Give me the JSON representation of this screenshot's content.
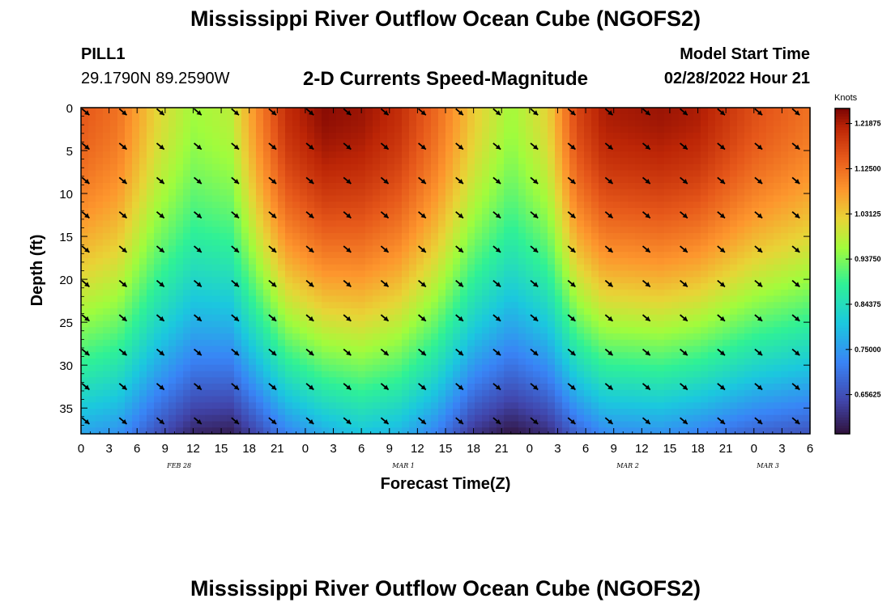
{
  "header": {
    "title": "Mississippi River Outflow Ocean Cube (NGOFS2)",
    "station": "PILL1",
    "coordinates": "29.1790N  89.2590W",
    "subtitle": "2-D Currents Speed-Magnitude",
    "model_start_label": "Model Start Time",
    "model_start_value": "02/28/2022 Hour 21"
  },
  "footer": {
    "title": "Mississippi River Outflow Ocean Cube (NGOFS2)"
  },
  "chart_data": {
    "type": "heatmap",
    "xlabel": "Forecast Time(Z)",
    "ylabel": "Depth (ft)",
    "x_tick_labels": [
      "0",
      "3",
      "6",
      "9",
      "12",
      "15",
      "18",
      "21",
      "0",
      "3",
      "6",
      "9",
      "12",
      "15",
      "18",
      "21",
      "0",
      "3",
      "6",
      "9",
      "12",
      "15",
      "18",
      "21",
      "0",
      "3",
      "6"
    ],
    "date_labels": [
      "FEB 28",
      "MAR 1",
      "MAR 2",
      "MAR 3"
    ],
    "date_label_hours": [
      10.5,
      34.5,
      58.5,
      73.5
    ],
    "y_ticks": [
      0,
      5,
      10,
      15,
      20,
      25,
      30,
      35
    ],
    "ylim": [
      0,
      38
    ],
    "xlim_hours": [
      0,
      78
    ],
    "colorbar": {
      "unit": "Knots",
      "tick_labels": [
        "1.21875",
        "1.12500",
        "1.03125",
        "0.93750",
        "0.84375",
        "0.75000",
        "0.65625"
      ],
      "ticks": [
        1.21875,
        1.125,
        1.03125,
        0.9375,
        0.84375,
        0.75,
        0.65625
      ],
      "range": [
        0.575,
        1.25
      ]
    },
    "speed_profiles": [
      {
        "hour": 0,
        "surface": 1.15,
        "bottom": 0.76
      },
      {
        "hour": 4,
        "surface": 1.12,
        "bottom": 0.74
      },
      {
        "hour": 8,
        "surface": 1.02,
        "bottom": 0.66
      },
      {
        "hour": 12,
        "surface": 0.96,
        "bottom": 0.6
      },
      {
        "hour": 16,
        "surface": 0.98,
        "bottom": 0.59
      },
      {
        "hour": 19,
        "surface": 1.1,
        "bottom": 0.65
      },
      {
        "hour": 22,
        "surface": 1.2,
        "bottom": 0.72
      },
      {
        "hour": 26,
        "surface": 1.24,
        "bottom": 0.77
      },
      {
        "hour": 30,
        "surface": 1.23,
        "bottom": 0.8
      },
      {
        "hour": 34,
        "surface": 1.2,
        "bottom": 0.78
      },
      {
        "hour": 38,
        "surface": 1.13,
        "bottom": 0.72
      },
      {
        "hour": 42,
        "surface": 1.03,
        "bottom": 0.62
      },
      {
        "hour": 46,
        "surface": 0.96,
        "bottom": 0.58
      },
      {
        "hour": 50,
        "surface": 1.02,
        "bottom": 0.61
      },
      {
        "hour": 53,
        "surface": 1.17,
        "bottom": 0.68
      },
      {
        "hour": 56,
        "surface": 1.22,
        "bottom": 0.73
      },
      {
        "hour": 62,
        "surface": 1.23,
        "bottom": 0.74
      },
      {
        "hour": 66,
        "surface": 1.22,
        "bottom": 0.72
      },
      {
        "hour": 72,
        "surface": 1.16,
        "bottom": 0.68
      },
      {
        "hour": 78,
        "surface": 1.12,
        "bottom": 0.66
      }
    ],
    "vector_hours": [
      0,
      4,
      8,
      12,
      16,
      20,
      24,
      28,
      32,
      36,
      40,
      44,
      48,
      52,
      56,
      60,
      64,
      68,
      72,
      76
    ],
    "vector_depths": [
      0.5,
      4.5,
      8.5,
      12.5,
      16.5,
      20.5,
      24.5,
      28.5,
      32.5,
      36.5
    ],
    "vector_direction_deg": 130
  }
}
